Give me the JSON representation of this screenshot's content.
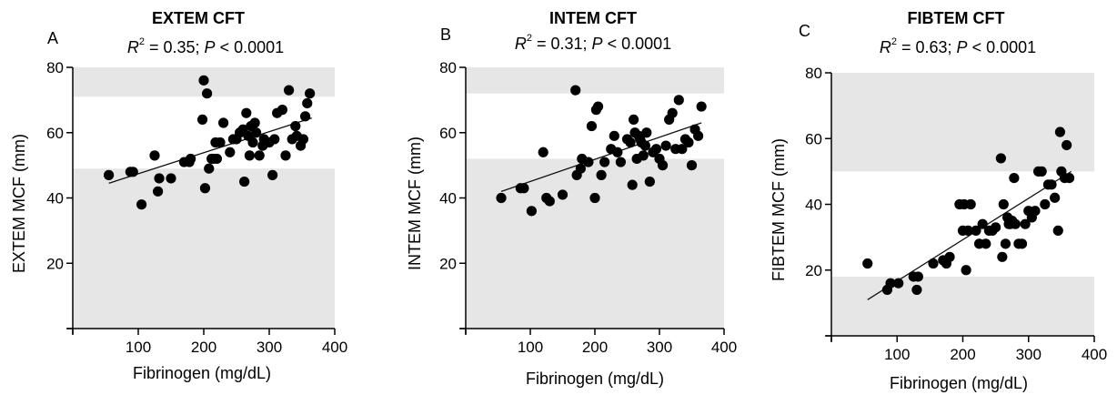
{
  "chart_data": [
    {
      "type": "scatter",
      "panel_letter": "A",
      "title": "EXTEM CFT",
      "stat": {
        "r2_label": "R",
        "r2_exp": "2",
        "r2_value": " = 0.35; ",
        "p_label": "P",
        "p_value": " < 0.0001"
      },
      "xlabel": "Fibrinogen (mg/dL)",
      "ylabel": "EXTEM MCF (mm)",
      "xlim": [
        0,
        400
      ],
      "ylim": [
        0,
        80
      ],
      "x_ticks": [
        100,
        200,
        300,
        400
      ],
      "y_ticks": [
        20,
        40,
        60,
        80
      ],
      "reference_range": [
        49,
        71
      ],
      "regression": {
        "x": [
          55,
          365
        ],
        "y": [
          44.5,
          64.5
        ]
      },
      "x": [
        55,
        88,
        92,
        105,
        125,
        130,
        132,
        150,
        170,
        178,
        180,
        198,
        200,
        202,
        205,
        208,
        212,
        215,
        218,
        220,
        225,
        230,
        240,
        245,
        250,
        255,
        260,
        262,
        265,
        268,
        270,
        272,
        275,
        278,
        280,
        285,
        290,
        292,
        300,
        305,
        308,
        312,
        320,
        325,
        330,
        335,
        340,
        342,
        348,
        352,
        355,
        358,
        362
      ],
      "y": [
        47,
        48,
        48,
        38,
        53,
        42,
        46,
        46,
        51,
        51,
        52,
        64,
        76,
        43,
        72,
        49,
        52,
        52,
        57,
        52,
        57,
        63,
        54,
        58,
        58,
        60,
        61,
        45,
        66,
        59,
        53,
        62,
        57,
        63,
        60,
        53,
        56,
        58,
        57,
        47,
        58,
        66,
        67,
        53,
        73,
        58,
        62,
        59,
        56,
        58,
        65,
        69,
        72
      ]
    },
    {
      "type": "scatter",
      "panel_letter": "B",
      "title": "INTEM CFT",
      "stat": {
        "r2_label": "R",
        "r2_exp": "2",
        "r2_value": " = 0.31; ",
        "p_label": "P",
        "p_value": " < 0.0001"
      },
      "xlabel": "Fibrinogen (mg/dL)",
      "ylabel": "INTEM MCF (mm)",
      "xlim": [
        0,
        400
      ],
      "ylim": [
        0,
        80
      ],
      "x_ticks": [
        100,
        200,
        300,
        400
      ],
      "y_ticks": [
        20,
        40,
        60,
        80
      ],
      "reference_range": [
        52,
        72
      ],
      "regression": {
        "x": [
          55,
          365
        ],
        "y": [
          42,
          63
        ]
      },
      "x": [
        55,
        85,
        90,
        102,
        120,
        125,
        130,
        150,
        170,
        172,
        178,
        180,
        190,
        195,
        200,
        202,
        205,
        210,
        215,
        225,
        230,
        235,
        240,
        250,
        255,
        258,
        260,
        262,
        265,
        268,
        270,
        272,
        275,
        278,
        280,
        285,
        290,
        295,
        300,
        305,
        310,
        315,
        320,
        325,
        330,
        335,
        340,
        345,
        350,
        355,
        360,
        365
      ],
      "y": [
        40,
        43,
        43,
        36,
        54,
        40,
        39,
        41,
        73,
        47,
        49,
        52,
        51,
        62,
        40,
        67,
        68,
        47,
        51,
        55,
        59,
        54,
        51,
        58,
        57,
        44,
        64,
        60,
        52,
        59,
        58,
        57,
        53,
        56,
        60,
        45,
        54,
        55,
        52,
        50,
        56,
        64,
        66,
        55,
        70,
        55,
        58,
        57,
        50,
        61,
        59,
        68
      ]
    },
    {
      "type": "scatter",
      "panel_letter": "C",
      "title": "FIBTEM CFT",
      "stat": {
        "r2_label": "R",
        "r2_exp": "2",
        "r2_value": " = 0.63; ",
        "p_label": "P",
        "p_value": " < 0.0001"
      },
      "xlabel": "Fibrinogen (mg/dL)",
      "ylabel": "FIBTEM MCF (mm)",
      "xlim": [
        0,
        400
      ],
      "ylim": [
        0,
        80
      ],
      "x_ticks": [
        100,
        200,
        300,
        400
      ],
      "y_ticks": [
        20,
        40,
        60,
        80
      ],
      "reference_range": [
        18,
        50
      ],
      "regression": {
        "x": [
          55,
          365
        ],
        "y": [
          11,
          50
        ]
      },
      "x": [
        55,
        85,
        90,
        102,
        125,
        130,
        132,
        155,
        170,
        175,
        180,
        195,
        200,
        202,
        205,
        208,
        212,
        220,
        225,
        230,
        235,
        240,
        245,
        250,
        258,
        260,
        262,
        265,
        268,
        270,
        272,
        275,
        278,
        280,
        285,
        290,
        295,
        300,
        305,
        310,
        315,
        320,
        325,
        330,
        335,
        340,
        345,
        348,
        350,
        355,
        358,
        362
      ],
      "y": [
        22,
        14,
        16,
        16,
        18,
        14,
        18,
        22,
        23,
        22,
        24,
        40,
        32,
        40,
        20,
        32,
        40,
        32,
        28,
        34,
        28,
        32,
        32,
        33,
        54,
        24,
        40,
        28,
        36,
        34,
        34,
        35,
        48,
        34,
        28,
        28,
        34,
        38,
        36,
        38,
        50,
        50,
        40,
        46,
        46,
        42,
        32,
        62,
        50,
        48,
        58,
        48
      ]
    }
  ]
}
